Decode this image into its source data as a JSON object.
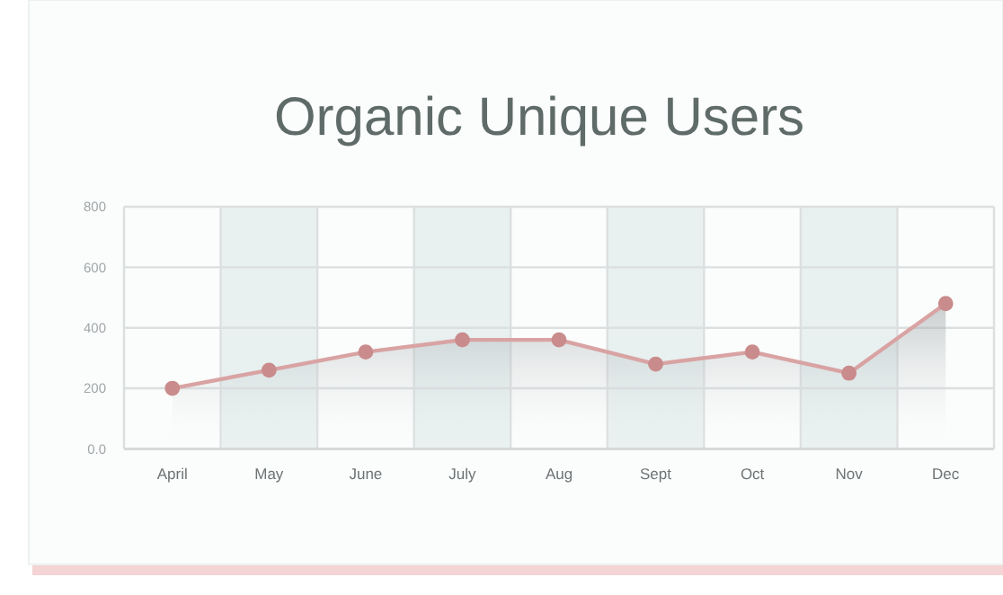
{
  "chart_data": {
    "type": "area",
    "title": "Organic Unique Users",
    "categories": [
      "April",
      "May",
      "June",
      "July",
      "Aug",
      "Sept",
      "Oct",
      "Nov",
      "Dec"
    ],
    "series": [
      {
        "color": "#d9a3a3",
        "values": [
          200,
          260,
          320,
          360,
          360,
          280,
          320,
          250,
          480
        ]
      }
    ],
    "ylim": [
      0,
      800
    ],
    "yticks": [
      {
        "value": 0,
        "label": "0.0"
      },
      200,
      400,
      600,
      800
    ],
    "grid": true,
    "marker": "circle"
  }
}
